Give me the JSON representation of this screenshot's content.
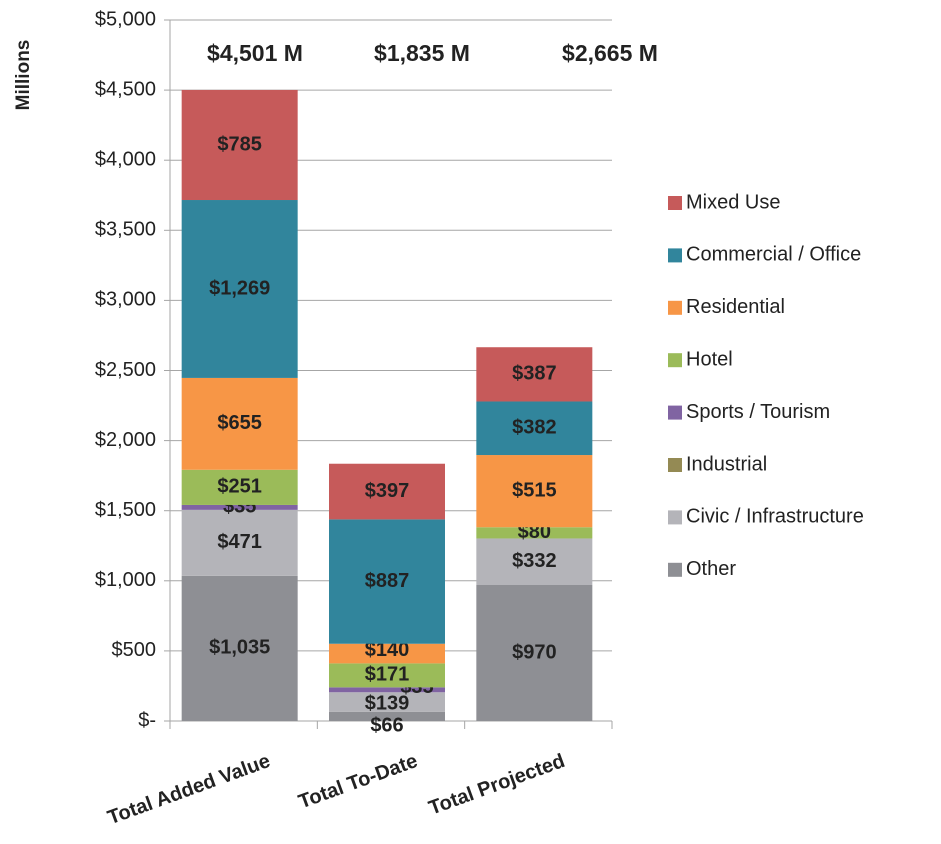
{
  "chart_data": {
    "type": "stacked_bar",
    "y_axis_label": "Millions",
    "categories": [
      "Total Added Value",
      "Total To-Date",
      "Total Projected"
    ],
    "total_labels": [
      "$4,501 M",
      "$1,835 M",
      "$2,665 M"
    ],
    "series": [
      {
        "name": "Other",
        "color": "#8e8f94",
        "values": [
          1035,
          66,
          970
        ],
        "value_labels": [
          "$1,035",
          "$66",
          "$970"
        ]
      },
      {
        "name": "Civic / Infrastructure",
        "color": "#b4b4b9",
        "values": [
          471,
          139,
          332
        ],
        "value_labels": [
          "$471",
          "$139",
          "$332"
        ]
      },
      {
        "name": "Industrial",
        "color": "#948a54",
        "values": [
          null,
          null,
          null
        ],
        "value_labels": [
          null,
          null,
          null
        ]
      },
      {
        "name": "Sports / Tourism",
        "color": "#8064a2",
        "values": [
          35,
          35,
          null
        ],
        "value_labels": [
          "$35",
          "$35",
          null
        ]
      },
      {
        "name": "Hotel",
        "color": "#9bbb59",
        "values": [
          251,
          171,
          80
        ],
        "value_labels": [
          "$251",
          "$171",
          "$80"
        ]
      },
      {
        "name": "Residential",
        "color": "#f79646",
        "values": [
          655,
          140,
          515
        ],
        "value_labels": [
          "$655",
          "$140",
          "$515"
        ]
      },
      {
        "name": "Commercial / Office",
        "color": "#31859c",
        "values": [
          1269,
          887,
          382
        ],
        "value_labels": [
          "$1,269",
          "$887",
          "$382"
        ]
      },
      {
        "name": "Mixed Use",
        "color": "#c65a5a",
        "values": [
          785,
          397,
          387
        ],
        "value_labels": [
          "$785",
          "$397",
          "$387"
        ]
      }
    ],
    "ylim": [
      0,
      5000
    ],
    "yticks": [
      {
        "value": 0,
        "label": "$-"
      },
      {
        "value": 500,
        "label": "$500"
      },
      {
        "value": 1000,
        "label": "$1,000"
      },
      {
        "value": 1500,
        "label": "$1,500"
      },
      {
        "value": 2000,
        "label": "$2,000"
      },
      {
        "value": 2500,
        "label": "$2,500"
      },
      {
        "value": 3000,
        "label": "$3,000"
      },
      {
        "value": 3500,
        "label": "$3,500"
      },
      {
        "value": 4000,
        "label": "$4,000"
      },
      {
        "value": 4500,
        "label": "$4,500"
      },
      {
        "value": 5000,
        "label": "$5,000"
      }
    ],
    "grid": true,
    "legend": "right"
  }
}
